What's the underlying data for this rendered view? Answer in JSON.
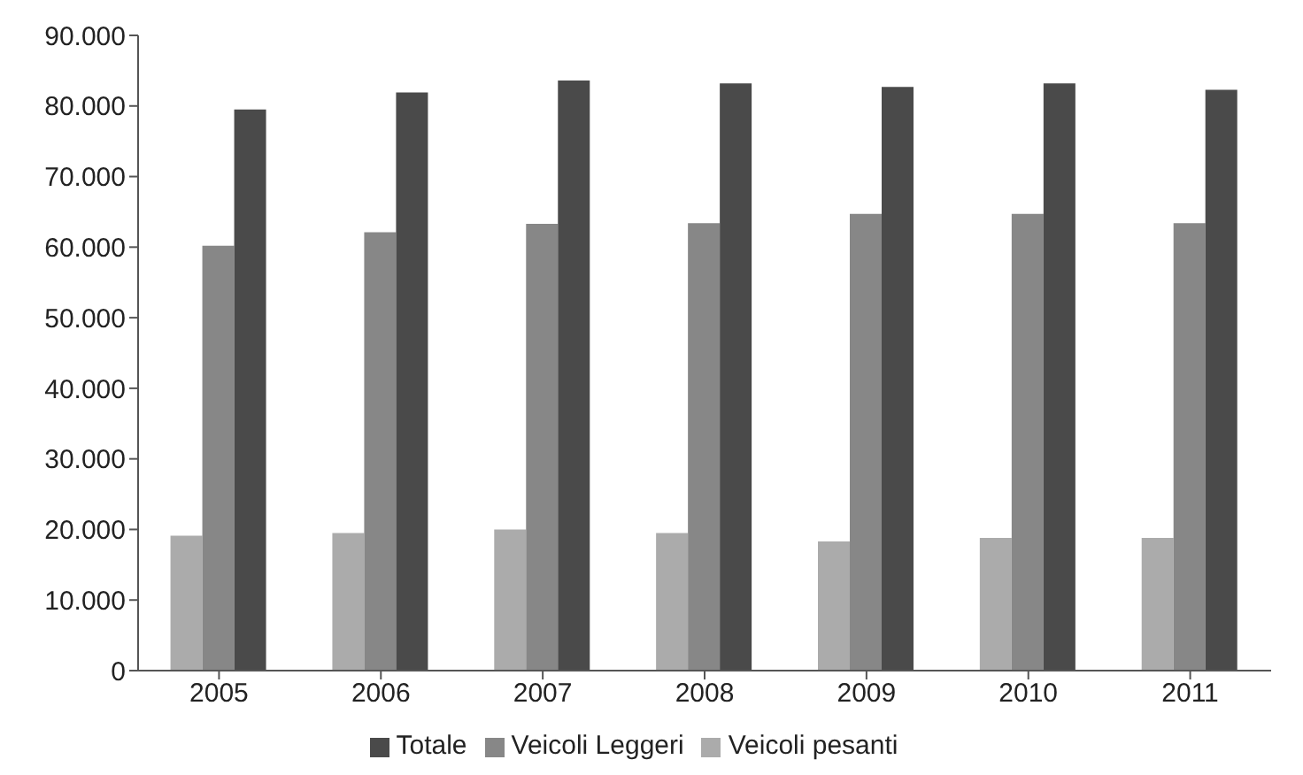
{
  "chart_data": {
    "type": "bar",
    "categories": [
      "2005",
      "2006",
      "2007",
      "2008",
      "2009",
      "2010",
      "2011"
    ],
    "series": [
      {
        "name": "Veicoli pesanti",
        "color": "#ababab",
        "values": [
          19100,
          19500,
          20000,
          19500,
          18300,
          18800,
          18800
        ]
      },
      {
        "name": "Veicoli Leggeri",
        "color": "#878787",
        "values": [
          60200,
          62100,
          63300,
          63400,
          64700,
          64700,
          63400
        ]
      },
      {
        "name": "Totale",
        "color": "#4a4a4a",
        "values": [
          79500,
          81900,
          83600,
          83200,
          82700,
          83200,
          82300
        ]
      }
    ],
    "ylim": [
      0,
      90000
    ],
    "yticks": [
      {
        "value": 0,
        "label": "0"
      },
      {
        "value": 10000,
        "label": "10.000"
      },
      {
        "value": 20000,
        "label": "20.000"
      },
      {
        "value": 30000,
        "label": "30.000"
      },
      {
        "value": 40000,
        "label": "40.000"
      },
      {
        "value": 50000,
        "label": "50.000"
      },
      {
        "value": 60000,
        "label": "60.000"
      },
      {
        "value": 70000,
        "label": "70.000"
      },
      {
        "value": 80000,
        "label": "80.000"
      },
      {
        "value": 90000,
        "label": "90.000"
      }
    ],
    "grid": false,
    "legend": "bottom"
  }
}
